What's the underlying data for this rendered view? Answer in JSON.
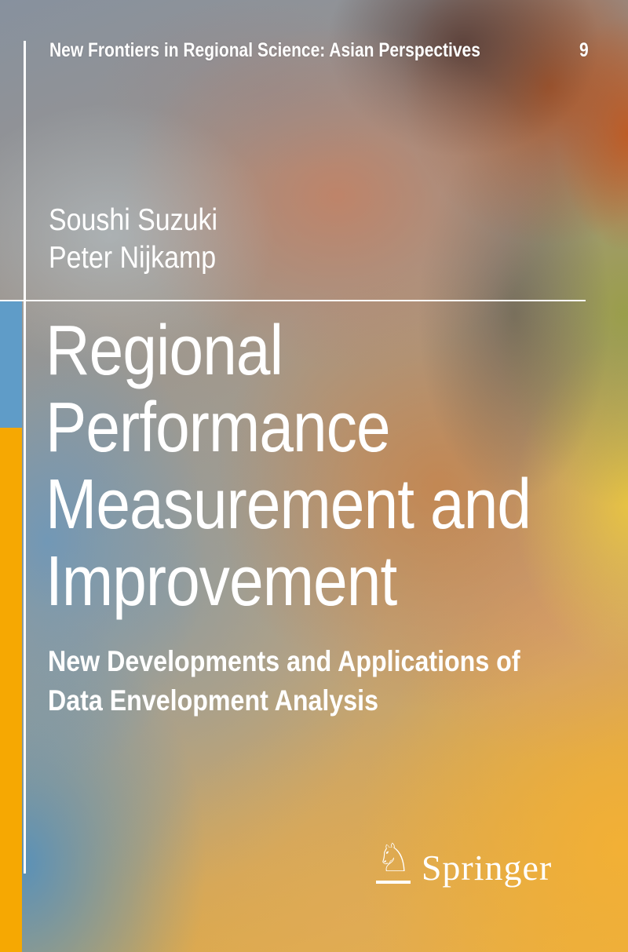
{
  "series": {
    "title": "New Frontiers in Regional Science: Asian Perspectives",
    "volume": "9"
  },
  "authors": [
    "Soushi Suzuki",
    "Peter Nijkamp"
  ],
  "title": {
    "lines": [
      "Regional",
      "Performance",
      "Measurement and",
      "Improvement"
    ]
  },
  "subtitle": {
    "lines": [
      "New Developments and Applications of",
      "Data Envelopment Analysis"
    ]
  },
  "publisher": {
    "name": "Springer",
    "logo_icon": "springer-horse-icon",
    "horse_glyph": "♘"
  },
  "colors": {
    "text": "#FFFFFF",
    "left_strip_blue": "#5F9CC8",
    "left_strip_yellow": "#F6A802"
  }
}
